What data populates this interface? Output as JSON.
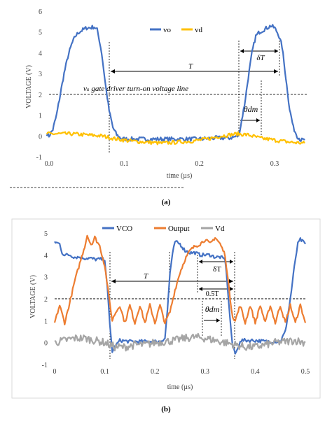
{
  "chart_data": [
    {
      "type": "line",
      "panel_label": "(a)",
      "xlabel": "time (µs)",
      "ylabel": "VOLTAGE (V)",
      "xlim": [
        -0.01,
        0.345
      ],
      "ylim": [
        -1,
        6
      ],
      "x_ticks": [
        "0.0",
        "0.1",
        "0.2",
        "0.3"
      ],
      "x_tick_values": [
        0,
        0.1,
        0.2,
        0.3
      ],
      "y_ticks": [
        "-1",
        "0",
        "1",
        "2",
        "3",
        "4",
        "5",
        "6"
      ],
      "y_tick_values": [
        -1,
        0,
        1,
        2,
        3,
        4,
        5,
        6
      ],
      "legend_position": "top-right",
      "series": [
        {
          "name": "vo",
          "color": "#4472C4",
          "x": [
            -0.003,
            0,
            0.005,
            0.01,
            0.015,
            0.02,
            0.025,
            0.03,
            0.035,
            0.04,
            0.045,
            0.05,
            0.055,
            0.06,
            0.064,
            0.067,
            0.07,
            0.075,
            0.08,
            0.085,
            0.09,
            0.095,
            0.1,
            0.12,
            0.14,
            0.16,
            0.18,
            0.2,
            0.22,
            0.24,
            0.252,
            0.255,
            0.26,
            0.265,
            0.27,
            0.275,
            0.28,
            0.285,
            0.29,
            0.295,
            0.3,
            0.305,
            0.31,
            0.315,
            0.32,
            0.325,
            0.33,
            0.335,
            0.34
          ],
          "y": [
            0.1,
            0.0,
            0.3,
            1.0,
            2.0,
            3.0,
            3.8,
            4.4,
            4.8,
            5.0,
            5.1,
            5.2,
            5.2,
            5.25,
            5.1,
            4.6,
            4.0,
            2.5,
            1.2,
            0.4,
            0.05,
            -0.1,
            -0.15,
            -0.15,
            -0.15,
            -0.15,
            -0.15,
            -0.15,
            -0.1,
            -0.1,
            0.0,
            0.5,
            1.5,
            2.8,
            4.0,
            4.8,
            5.0,
            5.1,
            5.2,
            5.3,
            5.2,
            4.9,
            4.3,
            2.8,
            1.3,
            0.4,
            0.0,
            -0.2,
            -0.2
          ],
          "noise": 0.1
        },
        {
          "name": "vd",
          "color": "#FFC000",
          "x": [
            -0.003,
            0.01,
            0.03,
            0.05,
            0.07,
            0.09,
            0.11,
            0.13,
            0.15,
            0.17,
            0.19,
            0.21,
            0.23,
            0.25,
            0.265,
            0.28,
            0.3,
            0.32,
            0.34
          ],
          "y": [
            0.1,
            0.1,
            0.1,
            0.05,
            0.0,
            -0.15,
            -0.25,
            -0.3,
            -0.35,
            -0.3,
            -0.25,
            -0.15,
            0.0,
            0.1,
            0.05,
            -0.1,
            -0.2,
            -0.3,
            -0.35
          ],
          "noise": 0.09
        }
      ],
      "hlines": [
        {
          "y": 2,
          "label": "vₛ gate driver turn-on voltage line"
        }
      ],
      "annotations": {
        "period_label": "T",
        "delta_label": "δT",
        "theta_label": "θdm"
      }
    },
    {
      "type": "line",
      "panel_label": "(b)",
      "xlabel": "time (µs)",
      "ylabel": "VOLTAGE (V)",
      "xlim": [
        0,
        0.5
      ],
      "ylim": [
        -1,
        5
      ],
      "x_ticks": [
        "0",
        "0.1",
        "0.2",
        "0.3",
        "0.4",
        "0.5"
      ],
      "x_tick_values": [
        0,
        0.1,
        0.2,
        0.3,
        0.4,
        0.5
      ],
      "y_ticks": [
        "-1",
        "0",
        "1",
        "2",
        "3",
        "4",
        "5"
      ],
      "y_tick_values": [
        -1,
        0,
        1,
        2,
        3,
        4,
        5
      ],
      "legend_position": "top",
      "series": [
        {
          "name": "VCO",
          "color": "#4472C4",
          "x": [
            0,
            0.01,
            0.015,
            0.02,
            0.03,
            0.04,
            0.05,
            0.06,
            0.07,
            0.08,
            0.09,
            0.1,
            0.105,
            0.11,
            0.115,
            0.12,
            0.13,
            0.15,
            0.18,
            0.21,
            0.22,
            0.225,
            0.23,
            0.235,
            0.24,
            0.25,
            0.26,
            0.27,
            0.28,
            0.29,
            0.3,
            0.31,
            0.32,
            0.33,
            0.34,
            0.345,
            0.35,
            0.355,
            0.36,
            0.365,
            0.37,
            0.4,
            0.42,
            0.45,
            0.46,
            0.47,
            0.48,
            0.485,
            0.49,
            0.5
          ],
          "y": [
            4.6,
            4.5,
            4.1,
            4.0,
            4.0,
            3.9,
            3.9,
            3.85,
            3.85,
            3.8,
            3.8,
            3.8,
            2.5,
            0.8,
            -0.4,
            -0.2,
            0.1,
            0.05,
            0.05,
            0.05,
            0.2,
            1.5,
            3.2,
            4.0,
            4.6,
            4.5,
            4.2,
            4.1,
            4.1,
            4.0,
            4.0,
            4.0,
            3.9,
            3.9,
            3.8,
            2.5,
            1.0,
            -0.2,
            -0.5,
            -0.3,
            0.1,
            0.1,
            0.05,
            0.05,
            0.5,
            2.0,
            3.8,
            4.5,
            4.7,
            4.5
          ],
          "noise": 0.08
        },
        {
          "name": "Output",
          "color": "#ED7D31",
          "x": [
            0,
            0.01,
            0.02,
            0.03,
            0.04,
            0.05,
            0.06,
            0.065,
            0.07,
            0.075,
            0.08,
            0.09,
            0.1,
            0.11,
            0.115,
            0.12,
            0.13,
            0.14,
            0.15,
            0.16,
            0.17,
            0.18,
            0.19,
            0.2,
            0.21,
            0.22,
            0.23,
            0.24,
            0.25,
            0.26,
            0.27,
            0.28,
            0.29,
            0.3,
            0.31,
            0.32,
            0.33,
            0.34,
            0.345,
            0.35,
            0.355,
            0.36,
            0.37,
            0.38,
            0.39,
            0.4,
            0.41,
            0.42,
            0.43,
            0.44,
            0.45,
            0.46,
            0.47,
            0.48,
            0.49,
            0.5
          ],
          "y": [
            0.9,
            1.7,
            0.9,
            1.8,
            2.8,
            3.6,
            4.4,
            4.9,
            4.6,
            4.5,
            4.8,
            4.4,
            3.5,
            1.8,
            1.0,
            1.3,
            1.7,
            0.9,
            1.7,
            0.9,
            1.7,
            0.9,
            1.7,
            0.9,
            1.7,
            0.9,
            1.4,
            2.4,
            3.2,
            3.8,
            4.2,
            4.4,
            4.5,
            4.7,
            4.5,
            4.8,
            4.5,
            4.0,
            3.0,
            2.0,
            1.2,
            1.0,
            1.7,
            0.9,
            1.7,
            0.9,
            1.7,
            0.9,
            1.7,
            0.9,
            1.7,
            0.9,
            1.7,
            0.9,
            1.7,
            0.9
          ],
          "noise": 0.08
        },
        {
          "name": "Vd",
          "color": "#A5A5A5",
          "x": [
            0,
            0.02,
            0.04,
            0.06,
            0.08,
            0.1,
            0.12,
            0.14,
            0.16,
            0.18,
            0.2,
            0.22,
            0.24,
            0.26,
            0.28,
            0.3,
            0.32,
            0.34,
            0.36,
            0.38,
            0.4,
            0.42,
            0.44,
            0.46,
            0.48,
            0.5
          ],
          "y": [
            0.0,
            0.1,
            0.2,
            0.2,
            0.1,
            0.0,
            -0.2,
            -0.2,
            -0.1,
            -0.1,
            0.0,
            0.05,
            0.1,
            0.2,
            0.25,
            0.2,
            0.1,
            0.0,
            -0.1,
            -0.2,
            -0.2,
            -0.1,
            0.0,
            0.05,
            0.1,
            0.0
          ],
          "noise": 0.18
        }
      ],
      "hlines": [
        {
          "y": 2,
          "label": ""
        }
      ],
      "annotations": {
        "period_label": "T",
        "delta_label": "δT",
        "half_label": "0.5T",
        "theta_label": "θdm"
      }
    }
  ]
}
